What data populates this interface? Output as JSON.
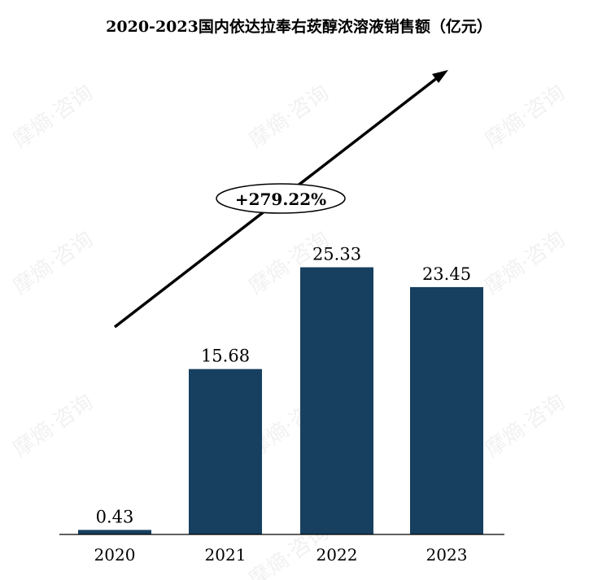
{
  "chart_data": {
    "type": "bar",
    "title": "2020-2023国内依达拉奉右莰醇浓溶液销售额（亿元）",
    "categories": [
      "2020",
      "2021",
      "2022",
      "2023"
    ],
    "values": [
      0.43,
      15.68,
      25.33,
      23.45
    ],
    "value_labels": [
      "0.43",
      "15.68",
      "25.33",
      "23.45"
    ],
    "ylim": [
      0,
      30
    ],
    "grid": false,
    "bar_color": "#173f5f",
    "annotation": "+279.22%"
  },
  "watermark": "摩熵·咨询"
}
